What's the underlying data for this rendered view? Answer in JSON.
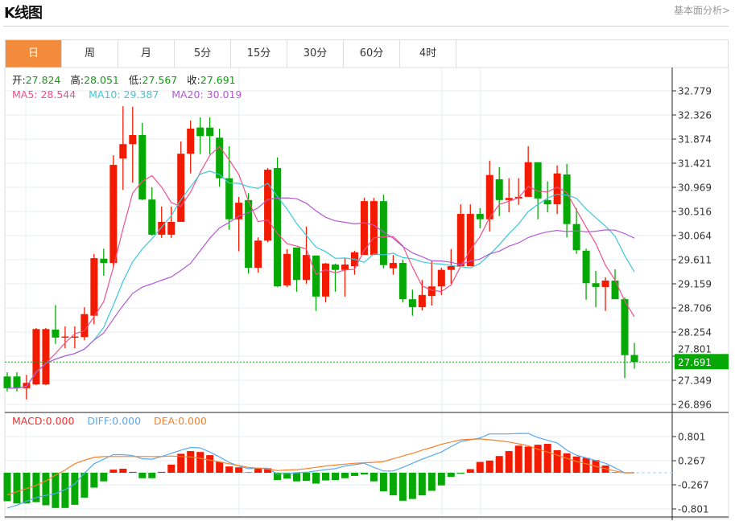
{
  "header": {
    "title": "K线图",
    "link": "基本面分析>"
  },
  "tabs": [
    {
      "label": "日"
    },
    {
      "label": "周"
    },
    {
      "label": "月"
    },
    {
      "label": "5分"
    },
    {
      "label": "15分"
    },
    {
      "label": "30分"
    },
    {
      "label": "60分"
    },
    {
      "label": "4时"
    }
  ],
  "active_tab": 0,
  "legend": {
    "open_label": "开:",
    "open": "27.824",
    "high_label": "高:",
    "high": "28.051",
    "low_label": "低:",
    "low": "27.567",
    "close_label": "收:",
    "close": "27.691",
    "ma5": "MA5: 28.544",
    "ma10": "MA10: 29.387",
    "ma20": "MA20: 30.019",
    "macd": "MACD:0.000",
    "diff": "DIFF:0.000",
    "dea": "DEA:0.000"
  },
  "colors": {
    "up": "#f21a00",
    "down": "#06a806",
    "ma5": "#f0508a",
    "ma10": "#3cc8dc",
    "ma20": "#b45ad2",
    "diff": "#55aaf0",
    "dea": "#f8802a",
    "tab_active": "#f28c3c"
  },
  "chart_data": [
    {
      "type": "candlestick",
      "title": "K线图",
      "ylim": [
        26.896,
        32.779
      ],
      "y_ticks": [
        "32.779",
        "32.326",
        "31.874",
        "31.421",
        "30.969",
        "30.516",
        "30.064",
        "29.611",
        "29.159",
        "28.706",
        "28.254",
        "27.801",
        "27.349",
        "26.896"
      ],
      "current_price": "27.691",
      "ohlc": [
        [
          27.42,
          27.5,
          27.14,
          27.2
        ],
        [
          27.42,
          27.5,
          27.14,
          27.2
        ],
        [
          27.2,
          27.45,
          26.99,
          27.3
        ],
        [
          27.27,
          28.33,
          27.26,
          28.31
        ],
        [
          27.27,
          28.33,
          27.26,
          28.31
        ],
        [
          28.3,
          28.76,
          28.03,
          28.15
        ],
        [
          28.16,
          28.36,
          27.95,
          28.17
        ],
        [
          28.16,
          28.36,
          27.95,
          28.17
        ],
        [
          28.16,
          28.72,
          28.1,
          28.59
        ],
        [
          28.56,
          29.72,
          28.4,
          29.64
        ],
        [
          29.63,
          29.82,
          29.31,
          29.55
        ],
        [
          29.55,
          31.57,
          29.46,
          31.39
        ],
        [
          31.51,
          32.49,
          30.92,
          31.78
        ],
        [
          31.78,
          32.48,
          31.06,
          31.95
        ],
        [
          31.95,
          32.18,
          30.73,
          30.74
        ],
        [
          30.74,
          30.97,
          30.06,
          30.08
        ],
        [
          30.08,
          30.61,
          30.02,
          30.32
        ],
        [
          30.08,
          30.61,
          30.02,
          30.32
        ],
        [
          30.32,
          31.83,
          30.32,
          31.6
        ],
        [
          31.6,
          32.22,
          31.23,
          32.07
        ],
        [
          32.09,
          32.28,
          31.59,
          31.93
        ],
        [
          32.09,
          32.28,
          31.59,
          31.93
        ],
        [
          31.9,
          32.07,
          30.98,
          31.14
        ],
        [
          31.14,
          31.74,
          30.17,
          30.37
        ],
        [
          30.37,
          30.79,
          29.77,
          30.68
        ],
        [
          30.73,
          30.86,
          29.35,
          29.46
        ],
        [
          29.46,
          30.03,
          29.37,
          29.97
        ],
        [
          29.97,
          31.33,
          29.94,
          31.3
        ],
        [
          31.33,
          31.53,
          29.1,
          29.11
        ],
        [
          29.13,
          29.81,
          29.1,
          29.72
        ],
        [
          29.84,
          29.84,
          29.01,
          29.23
        ],
        [
          29.23,
          30.23,
          29.16,
          29.7
        ],
        [
          29.69,
          29.69,
          28.65,
          28.92
        ],
        [
          28.92,
          29.55,
          28.81,
          29.54
        ],
        [
          29.52,
          29.54,
          29.01,
          29.42
        ],
        [
          29.42,
          29.64,
          28.92,
          29.52
        ],
        [
          29.49,
          29.78,
          29.33,
          29.75
        ],
        [
          29.7,
          30.77,
          29.7,
          30.71
        ],
        [
          29.7,
          30.77,
          29.7,
          30.71
        ],
        [
          30.71,
          30.83,
          29.45,
          29.51
        ],
        [
          29.45,
          29.7,
          29.33,
          29.55
        ],
        [
          29.55,
          29.61,
          28.81,
          28.87
        ],
        [
          28.87,
          29.05,
          28.56,
          28.72
        ],
        [
          28.72,
          29.23,
          28.66,
          28.95
        ],
        [
          28.93,
          29.58,
          28.75,
          29.11
        ],
        [
          29.11,
          29.46,
          28.95,
          29.42
        ],
        [
          29.42,
          29.81,
          29.16,
          29.49
        ],
        [
          29.49,
          30.65,
          29.49,
          30.47
        ],
        [
          29.49,
          30.65,
          29.49,
          30.47
        ],
        [
          30.47,
          30.58,
          30.2,
          30.37
        ],
        [
          30.37,
          31.47,
          30.14,
          31.2
        ],
        [
          31.12,
          31.35,
          30.43,
          30.73
        ],
        [
          30.73,
          31.14,
          30.5,
          30.77
        ],
        [
          30.76,
          31.14,
          30.64,
          30.79
        ],
        [
          30.79,
          31.74,
          30.79,
          31.44
        ],
        [
          31.44,
          31.44,
          30.37,
          30.76
        ],
        [
          30.73,
          31.08,
          30.5,
          30.65
        ],
        [
          30.65,
          31.38,
          30.47,
          31.23
        ],
        [
          31.21,
          31.41,
          30.03,
          30.28
        ],
        [
          30.28,
          30.58,
          29.72,
          29.79
        ],
        [
          29.78,
          29.82,
          28.86,
          29.17
        ],
        [
          29.17,
          29.4,
          28.72,
          29.1
        ],
        [
          29.1,
          29.28,
          28.65,
          29.22
        ],
        [
          29.22,
          29.43,
          28.87,
          28.87
        ],
        [
          28.87,
          28.9,
          27.39,
          27.82
        ],
        [
          27.824,
          28.051,
          27.567,
          27.691
        ]
      ],
      "ma_periods": [
        5,
        10,
        20
      ]
    },
    {
      "type": "bar+line",
      "title": "MACD",
      "ylim": [
        -0.9,
        0.9
      ],
      "y_ticks": [
        "0.801",
        "0.267",
        "-0.267",
        "-0.801"
      ],
      "macd": [
        -0.63,
        -0.68,
        -0.68,
        -0.65,
        -0.72,
        -0.78,
        -0.78,
        -0.71,
        -0.55,
        -0.33,
        -0.19,
        0.07,
        0.09,
        0.02,
        -0.12,
        -0.12,
        0.02,
        0.18,
        0.42,
        0.48,
        0.46,
        0.39,
        0.24,
        0.14,
        0.12,
        0.01,
        0.1,
        0.1,
        -0.16,
        -0.13,
        -0.19,
        -0.18,
        -0.24,
        -0.17,
        -0.16,
        -0.12,
        -0.07,
        -0.04,
        -0.19,
        -0.41,
        -0.5,
        -0.62,
        -0.58,
        -0.5,
        -0.4,
        -0.28,
        -0.09,
        -0.02,
        0.08,
        0.24,
        0.27,
        0.37,
        0.48,
        0.6,
        0.58,
        0.62,
        0.64,
        0.5,
        0.43,
        0.36,
        0.33,
        0.28,
        0.16,
        0.01,
        0,
        0
      ],
      "diff": [
        -0.78,
        -0.72,
        -0.63,
        -0.55,
        -0.5,
        -0.46,
        -0.37,
        -0.25,
        -0.01,
        0.2,
        0.3,
        0.4,
        0.4,
        0.38,
        0.31,
        0.3,
        0.36,
        0.43,
        0.5,
        0.56,
        0.55,
        0.46,
        0.35,
        0.23,
        0.15,
        0.09,
        0.1,
        0.1,
        -0.03,
        -0.02,
        0.0,
        0.01,
        0.04,
        0.07,
        0.09,
        0.15,
        0.18,
        0.21,
        0.12,
        0.04,
        0.04,
        0.12,
        0.21,
        0.3,
        0.38,
        0.46,
        0.58,
        0.69,
        0.73,
        0.77,
        0.86,
        0.86,
        0.86,
        0.87,
        0.87,
        0.78,
        0.72,
        0.66,
        0.5,
        0.39,
        0.33,
        0.27,
        0.21,
        0.11,
        0.0,
        0.0
      ],
      "dea": [
        -0.49,
        -0.42,
        -0.35,
        -0.28,
        -0.18,
        -0.05,
        0.06,
        0.2,
        0.28,
        0.34,
        0.36,
        0.36,
        0.36,
        0.36,
        0.36,
        0.36,
        0.36,
        0.37,
        0.36,
        0.35,
        0.32,
        0.28,
        0.24,
        0.2,
        0.16,
        0.12,
        0.1,
        0.08,
        0.05,
        0.06,
        0.07,
        0.09,
        0.12,
        0.15,
        0.17,
        0.19,
        0.21,
        0.22,
        0.23,
        0.25,
        0.31,
        0.37,
        0.43,
        0.5,
        0.56,
        0.63,
        0.68,
        0.73,
        0.74,
        0.75,
        0.73,
        0.71,
        0.68,
        0.64,
        0.6,
        0.52,
        0.46,
        0.39,
        0.32,
        0.25,
        0.2,
        0.14,
        0.09,
        0.04,
        0.0,
        0.0
      ]
    }
  ]
}
